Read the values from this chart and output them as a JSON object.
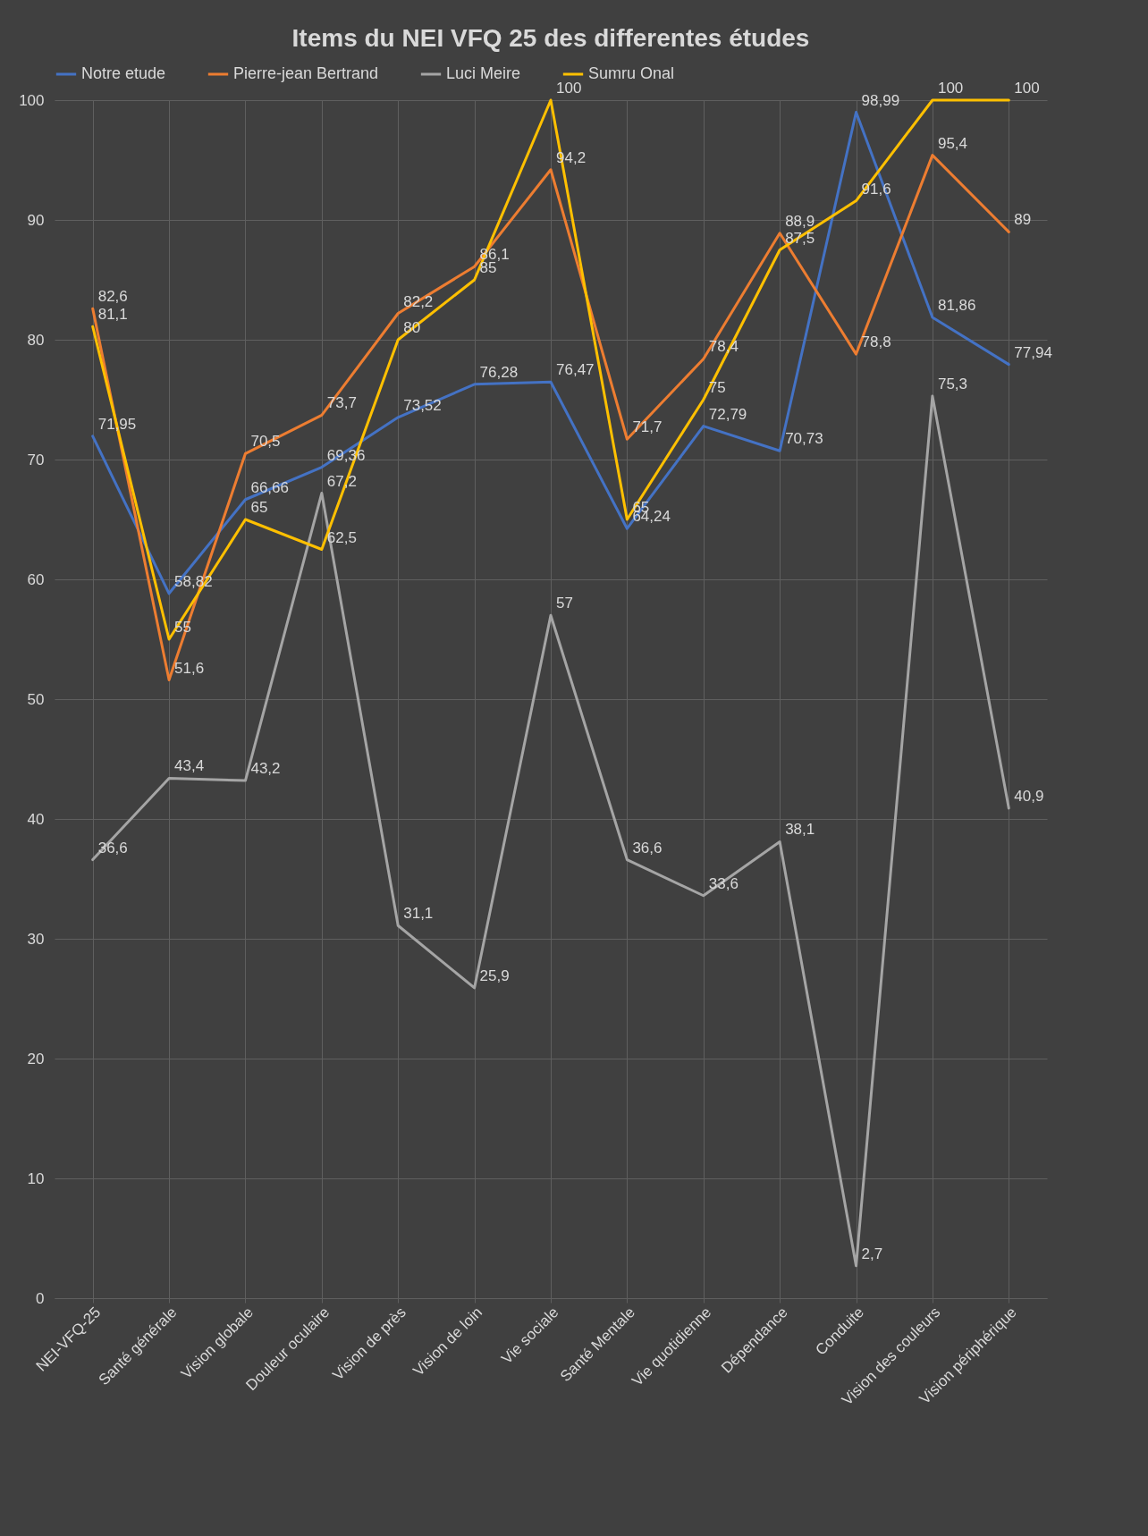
{
  "chart_data": {
    "type": "line",
    "title": "Items du NEI VFQ 25 des differentes études",
    "categories": [
      "NEI-VFQ-25",
      "Santé générale",
      "Vision globale",
      "Douleur oculaire",
      "Vision de près",
      "Vision de loin",
      "Vie sociale",
      "Santé Mentale",
      "Vie quotidienne",
      "Dépendance",
      "Conduite",
      "Vision des couleurs",
      "Vision périphérique"
    ],
    "series": [
      {
        "name": "Notre etude",
        "color": "#4472c4",
        "values": [
          71.95,
          58.82,
          66.66,
          69.36,
          73.52,
          76.28,
          76.47,
          64.24,
          72.79,
          70.73,
          98.99,
          81.86,
          77.94
        ],
        "value_labels": [
          "71,95",
          "58,82",
          "66,66",
          "69,36",
          "73,52",
          "76,28",
          "76,47",
          "64,24",
          "72,79",
          "70,73",
          "98,99",
          "81,86",
          "77,94"
        ]
      },
      {
        "name": "Pierre-jean Bertrand",
        "color": "#ed7d31",
        "values": [
          82.6,
          51.6,
          70.5,
          73.7,
          82.2,
          86.1,
          94.2,
          71.7,
          78.4,
          88.9,
          78.8,
          95.4,
          89
        ],
        "value_labels": [
          "82,6",
          "51,6",
          "70,5",
          "73,7",
          "82,2",
          "86,1",
          "94,2",
          "71,7",
          "78,4",
          "88,9",
          "78,8",
          "95,4",
          "89"
        ]
      },
      {
        "name": "Luci Meire",
        "color": "#a5a5a5",
        "values": [
          36.6,
          43.4,
          43.2,
          67.2,
          31.1,
          25.9,
          57,
          36.6,
          33.6,
          38.1,
          2.7,
          75.3,
          40.9
        ],
        "value_labels": [
          "36,6",
          "43,4",
          "43,2",
          "67,2",
          "31,1",
          "25,9",
          "57",
          "36,6",
          "33,6",
          "38,1",
          "2,7",
          "75,3",
          "40,9"
        ]
      },
      {
        "name": "Sumru Onal",
        "color": "#ffc000",
        "values": [
          81.1,
          55,
          65,
          62.5,
          80,
          85,
          100,
          65,
          75,
          87.5,
          91.6,
          100,
          100
        ],
        "value_labels": [
          "81,1",
          "55",
          "65",
          "62,5",
          "80",
          "85",
          "100",
          "65",
          "75",
          "87,5",
          "91,6",
          "100",
          "100"
        ]
      }
    ],
    "ylim": [
      0,
      100
    ],
    "yticks": [
      0,
      10,
      20,
      30,
      40,
      50,
      60,
      70,
      80,
      90,
      100
    ],
    "grid": true,
    "legend": "top",
    "line_style": "solid"
  }
}
